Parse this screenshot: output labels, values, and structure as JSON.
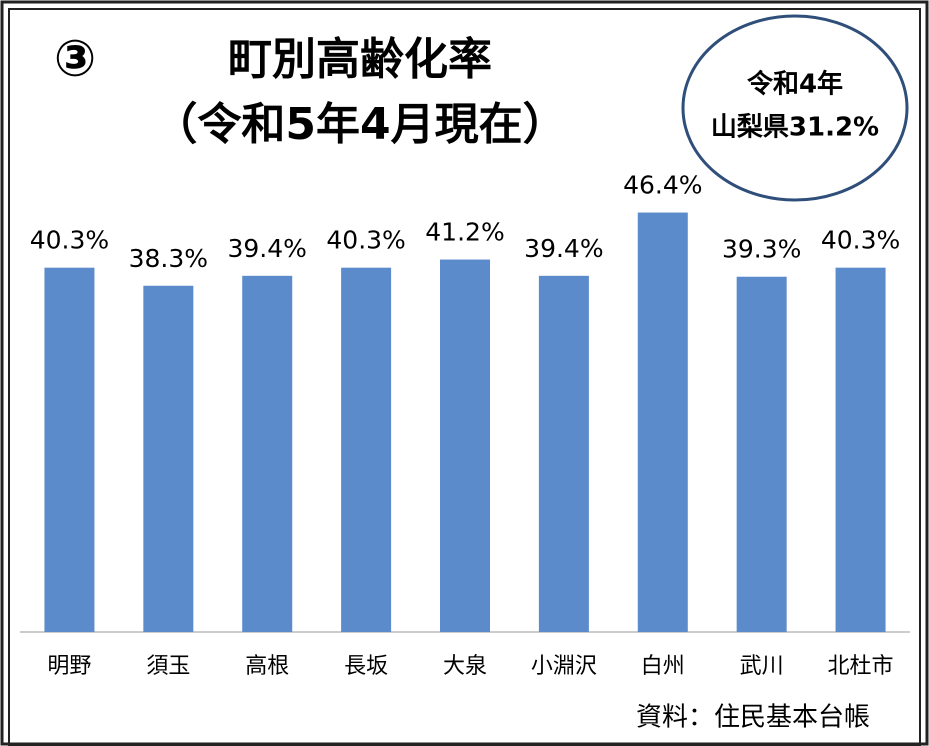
{
  "chart_data": {
    "type": "bar",
    "badge": "③",
    "title": "町別高齢化率",
    "subtitle": "（令和5年4月現在）",
    "annotation": [
      "令和4年",
      "山梨県31.2%"
    ],
    "source": "資料：住民基本台帳",
    "categories": [
      "明野",
      "須玉",
      "高根",
      "長坂",
      "大泉",
      "小淵沢",
      "白州",
      "武川",
      "北杜市"
    ],
    "values": [
      40.3,
      38.3,
      39.4,
      40.3,
      41.2,
      39.4,
      46.4,
      39.3,
      40.3
    ],
    "value_labels": [
      "40.3%",
      "38.3%",
      "39.4%",
      "40.3%",
      "41.2%",
      "39.4%",
      "46.4%",
      "39.3%",
      "40.3%"
    ],
    "color": "#5b8bcb",
    "ylim": [
      0,
      50
    ]
  }
}
